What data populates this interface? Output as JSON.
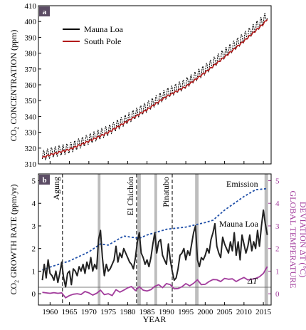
{
  "chart_data": [
    {
      "panel": "a",
      "type": "line",
      "ylabel_main": "CO",
      "ylabel_sub": "2",
      "ylabel_rest": " CONCENTRATION (ppm)",
      "xlim": [
        1957,
        2017
      ],
      "ylim": [
        310,
        410
      ],
      "yticks": [
        310,
        320,
        330,
        340,
        350,
        360,
        370,
        380,
        390,
        400,
        410
      ],
      "series": [
        {
          "name": "Mauna Loa",
          "color": "#000000",
          "seasonal_amplitude_ppm": 3.2,
          "x": [
            1958,
            1960,
            1965,
            1970,
            1975,
            1980,
            1985,
            1990,
            1995,
            2000,
            2005,
            2010,
            2015,
            2016
          ],
          "y": [
            315.0,
            316.9,
            320.0,
            325.7,
            331.1,
            338.7,
            346.1,
            354.4,
            360.8,
            369.7,
            379.8,
            389.9,
            400.8,
            404.2
          ]
        },
        {
          "name": "South Pole",
          "color": "#b31b1b",
          "seasonal_amplitude_ppm": 0.5,
          "x": [
            1958,
            1960,
            1965,
            1970,
            1975,
            1980,
            1985,
            1990,
            1995,
            2000,
            2005,
            2010,
            2015,
            2016
          ],
          "y": [
            314.0,
            315.8,
            319.2,
            324.4,
            329.9,
            337.1,
            344.3,
            352.6,
            358.9,
            367.8,
            377.6,
            387.7,
            398.5,
            401.6
          ]
        }
      ]
    },
    {
      "panel": "b",
      "type": "line",
      "xlabel": "YEAR",
      "ylabel_main": "CO",
      "ylabel_sub": "2",
      "ylabel_rest": " GROWTH RATE (ppm/yr)",
      "y2label_line1": "GLOBAL TEMPERATURE",
      "y2label_line2": "DEVIATION ΔT (°C)",
      "xlim": [
        1957,
        2017
      ],
      "ylim": [
        -0.5,
        5.3
      ],
      "y2lim": [
        -0.5,
        5.3
      ],
      "xticks": [
        1960,
        1965,
        1970,
        1975,
        1980,
        1985,
        1990,
        1995,
        2000,
        2005,
        2010,
        2015
      ],
      "yticks": [
        0,
        1,
        2,
        3,
        4,
        5
      ],
      "y2ticks": [
        0,
        1,
        2,
        3,
        4,
        5
      ],
      "eruptions": [
        {
          "label": "Agung",
          "year": 1963.2
        },
        {
          "label": "El Chichón",
          "year": 1982.3
        },
        {
          "label": "Pinatubo",
          "year": 1991.5
        }
      ],
      "el_nino_bands": [
        [
          1972.3,
          1973.0
        ],
        [
          1982.5,
          1983.4
        ],
        [
          1986.9,
          1987.6
        ],
        [
          1997.4,
          1998.3
        ],
        [
          2015.3,
          2016.2
        ]
      ],
      "series": [
        {
          "name": "Emission",
          "color": "#1f4fa8",
          "style": "dashed",
          "x": [
            1958,
            1960,
            1965,
            1970,
            1973,
            1975,
            1979,
            1983,
            1985,
            1990,
            1995,
            2000,
            2002,
            2005,
            2010,
            2013,
            2016
          ],
          "y": [
            1.05,
            1.18,
            1.45,
            1.85,
            2.2,
            2.15,
            2.55,
            2.45,
            2.6,
            2.85,
            2.95,
            3.15,
            3.25,
            3.7,
            4.3,
            4.6,
            4.65
          ]
        },
        {
          "name": "Mauna Loa",
          "color": "#222222",
          "x": [
            1958,
            1958.5,
            1959,
            1959.5,
            1960,
            1960.5,
            1961,
            1961.5,
            1962,
            1962.5,
            1963,
            1963.5,
            1964,
            1964.5,
            1965,
            1965.5,
            1966,
            1966.5,
            1967,
            1967.5,
            1968,
            1968.5,
            1969,
            1969.5,
            1970,
            1970.5,
            1971,
            1971.5,
            1972,
            1972.5,
            1973,
            1973.5,
            1974,
            1974.5,
            1975,
            1975.5,
            1976,
            1976.5,
            1977,
            1977.5,
            1978,
            1978.5,
            1979,
            1979.5,
            1980,
            1980.5,
            1981,
            1981.5,
            1982,
            1982.5,
            1983,
            1983.5,
            1984,
            1984.5,
            1985,
            1985.5,
            1986,
            1986.5,
            1987,
            1987.5,
            1988,
            1988.5,
            1989,
            1989.5,
            1990,
            1990.5,
            1991,
            1991.5,
            1992,
            1992.5,
            1993,
            1993.5,
            1994,
            1994.5,
            1995,
            1995.5,
            1996,
            1996.5,
            1997,
            1997.5,
            1998,
            1998.5,
            1999,
            1999.5,
            2000,
            2000.5,
            2001,
            2001.5,
            2002,
            2002.5,
            2003,
            2003.5,
            2004,
            2004.5,
            2005,
            2005.5,
            2006,
            2006.5,
            2007,
            2007.5,
            2008,
            2008.5,
            2009,
            2009.5,
            2010,
            2010.5,
            2011,
            2011.5,
            2012,
            2012.5,
            2013,
            2013.5,
            2014,
            2014.5,
            2015,
            2015.5,
            2016
          ],
          "y": [
            0.6,
            1.3,
            0.7,
            1.5,
            0.9,
            0.8,
            0.6,
            1.0,
            0.5,
            0.9,
            1.4,
            0.7,
            0.3,
            0.9,
            1.0,
            0.4,
            1.1,
            1.0,
            0.8,
            1.2,
            1.0,
            1.3,
            0.9,
            1.4,
            1.1,
            1.6,
            1.0,
            1.3,
            1.1,
            2.4,
            2.8,
            1.6,
            0.8,
            1.3,
            1.0,
            1.1,
            1.3,
            1.5,
            2.1,
            1.4,
            1.8,
            1.6,
            2.0,
            1.8,
            1.6,
            1.4,
            1.3,
            1.1,
            1.6,
            2.3,
            2.7,
            1.8,
            1.6,
            1.3,
            1.5,
            1.2,
            1.6,
            2.2,
            2.7,
            1.8,
            2.3,
            2.4,
            1.7,
            1.5,
            1.3,
            2.2,
            1.5,
            1.0,
            0.6,
            0.7,
            1.1,
            1.7,
            1.8,
            2.0,
            1.5,
            1.9,
            1.7,
            2.2,
            2.7,
            3.0,
            1.5,
            1.2,
            1.6,
            1.5,
            1.7,
            2.0,
            1.8,
            2.4,
            2.7,
            3.1,
            2.1,
            1.8,
            1.6,
            2.5,
            2.2,
            2.0,
            1.8,
            2.3,
            1.9,
            2.7,
            1.7,
            2.3,
            1.5,
            2.6,
            2.2,
            1.8,
            2.1,
            2.6,
            1.9,
            2.3,
            2.0,
            2.8,
            2.1,
            3.0,
            3.7,
            3.1,
            2.6
          ]
        },
        {
          "name": "ΔT",
          "color": "#a23c9c",
          "x": [
            1958,
            1959,
            1960,
            1961,
            1962,
            1963,
            1964,
            1965,
            1966,
            1967,
            1968,
            1969,
            1970,
            1971,
            1972,
            1973,
            1974,
            1975,
            1976,
            1977,
            1978,
            1979,
            1980,
            1981,
            1982,
            1983,
            1984,
            1985,
            1986,
            1987,
            1988,
            1989,
            1990,
            1991,
            1992,
            1993,
            1994,
            1995,
            1996,
            1997,
            1998,
            1999,
            2000,
            2001,
            2002,
            2003,
            2004,
            2005,
            2006,
            2007,
            2008,
            2009,
            2010,
            2011,
            2012,
            2013,
            2014,
            2015,
            2016
          ],
          "y": [
            0.06,
            0.04,
            0.02,
            0.05,
            0.02,
            0.04,
            -0.18,
            -0.08,
            -0.02,
            0.0,
            -0.03,
            0.1,
            0.04,
            -0.06,
            0.02,
            0.16,
            -0.04,
            0.0,
            -0.08,
            0.18,
            0.07,
            0.16,
            0.26,
            0.32,
            0.14,
            0.31,
            0.16,
            0.12,
            0.18,
            0.33,
            0.4,
            0.27,
            0.45,
            0.4,
            0.22,
            0.23,
            0.31,
            0.45,
            0.35,
            0.46,
            0.62,
            0.4,
            0.42,
            0.54,
            0.63,
            0.62,
            0.54,
            0.68,
            0.64,
            0.66,
            0.54,
            0.64,
            0.72,
            0.61,
            0.64,
            0.68,
            0.75,
            0.9,
            1.2
          ]
        }
      ]
    }
  ]
}
